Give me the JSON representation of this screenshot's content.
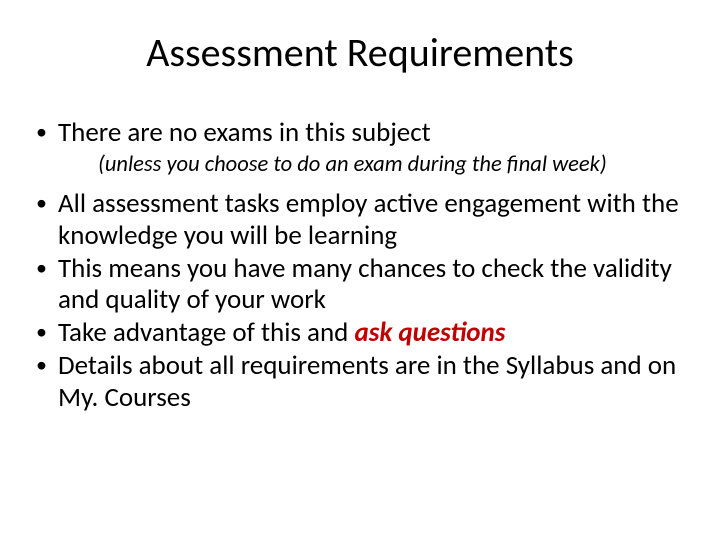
{
  "title": "Assessment Requirements",
  "bullets": {
    "b1": "There are no exams in this subject",
    "sub1": "(unless you choose to do an exam during the final week)",
    "b2": "All assessment tasks employ active engagement with the knowledge you will be learning",
    "b3": "This means you have many chances to check the validity and quality of your work",
    "b4_pre": "Take advantage of this and ",
    "b4_emph": "ask questions",
    "b5": "Details about all requirements are in the Syllabus and on My. Courses"
  },
  "colors": {
    "text": "#000000",
    "emphasis": "#c00000",
    "background": "#ffffff"
  },
  "typography": {
    "title_fontsize": 40,
    "body_fontsize": 27,
    "subnote_fontsize": 22.5,
    "font_family": "Calibri"
  }
}
